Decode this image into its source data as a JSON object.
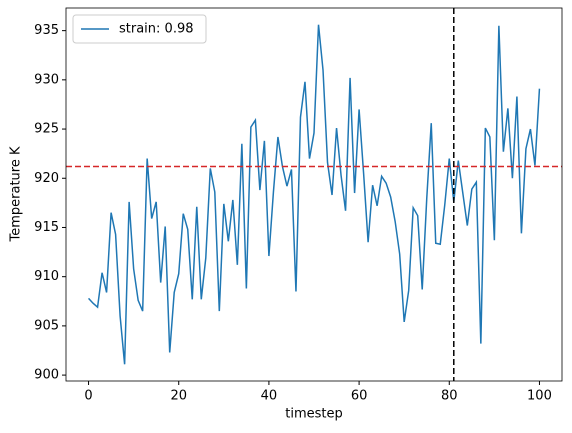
{
  "chart_data": {
    "type": "line",
    "x_label": "timestep",
    "y_label": "Temperature K",
    "x": [
      0,
      1,
      2,
      3,
      4,
      5,
      6,
      7,
      8,
      9,
      10,
      11,
      12,
      13,
      14,
      15,
      16,
      17,
      18,
      19,
      20,
      21,
      22,
      23,
      24,
      25,
      26,
      27,
      28,
      29,
      30,
      31,
      32,
      33,
      34,
      35,
      36,
      37,
      38,
      39,
      40,
      41,
      42,
      43,
      44,
      45,
      46,
      47,
      48,
      49,
      50,
      51,
      52,
      53,
      54,
      55,
      56,
      57,
      58,
      59,
      60,
      61,
      62,
      63,
      64,
      65,
      66,
      67,
      68,
      69,
      70,
      71,
      72,
      73,
      74,
      75,
      76,
      77,
      78,
      79,
      80,
      81,
      82,
      83,
      84,
      85,
      86,
      87,
      88,
      89,
      90,
      91,
      92,
      93,
      94,
      95,
      96,
      97,
      98,
      99,
      100
    ],
    "series": [
      {
        "name": "strain: 0.98",
        "color": "#1f77b4",
        "values": [
          907.8,
          907.3,
          906.9,
          910.4,
          908.4,
          916.5,
          914.3,
          906.0,
          901.1,
          917.6,
          910.8,
          907.6,
          906.5,
          922.0,
          915.9,
          917.6,
          909.4,
          915.1,
          902.3,
          908.4,
          910.3,
          916.4,
          914.8,
          907.7,
          917.1,
          907.7,
          911.9,
          921.0,
          918.6,
          906.5,
          917.4,
          913.6,
          917.8,
          911.2,
          923.5,
          908.8,
          925.2,
          925.9,
          918.8,
          923.8,
          912.1,
          918.6,
          924.2,
          921.2,
          919.2,
          920.9,
          908.5,
          926.2,
          929.8,
          922.0,
          924.6,
          935.6,
          931.0,
          921.6,
          918.3,
          925.1,
          920.3,
          916.7,
          930.2,
          918.5,
          927.0,
          920.5,
          913.5,
          919.3,
          917.2,
          920.2,
          919.5,
          918.1,
          915.6,
          912.3,
          905.4,
          908.6,
          917.0,
          916.2,
          908.7,
          917.9,
          925.6,
          913.4,
          913.3,
          917.3,
          922.0,
          917.6,
          921.8,
          918.5,
          915.2,
          918.9,
          919.6,
          903.2,
          925.1,
          924.2,
          913.7,
          935.5,
          922.7,
          927.1,
          920.0,
          928.3,
          914.4,
          923.0,
          925.0,
          921.3,
          929.1
        ]
      }
    ],
    "hline": {
      "value": 921.2,
      "color": "#d62728"
    },
    "vline": {
      "value": 81,
      "color": "#000000"
    },
    "xlim": [
      -5,
      105
    ],
    "xticks": [
      0,
      20,
      40,
      60,
      80,
      100
    ],
    "ylim": [
      899.4,
      937.3
    ],
    "yticks": [
      900,
      905,
      910,
      915,
      920,
      925,
      930,
      935
    ],
    "legend": "upper left"
  }
}
